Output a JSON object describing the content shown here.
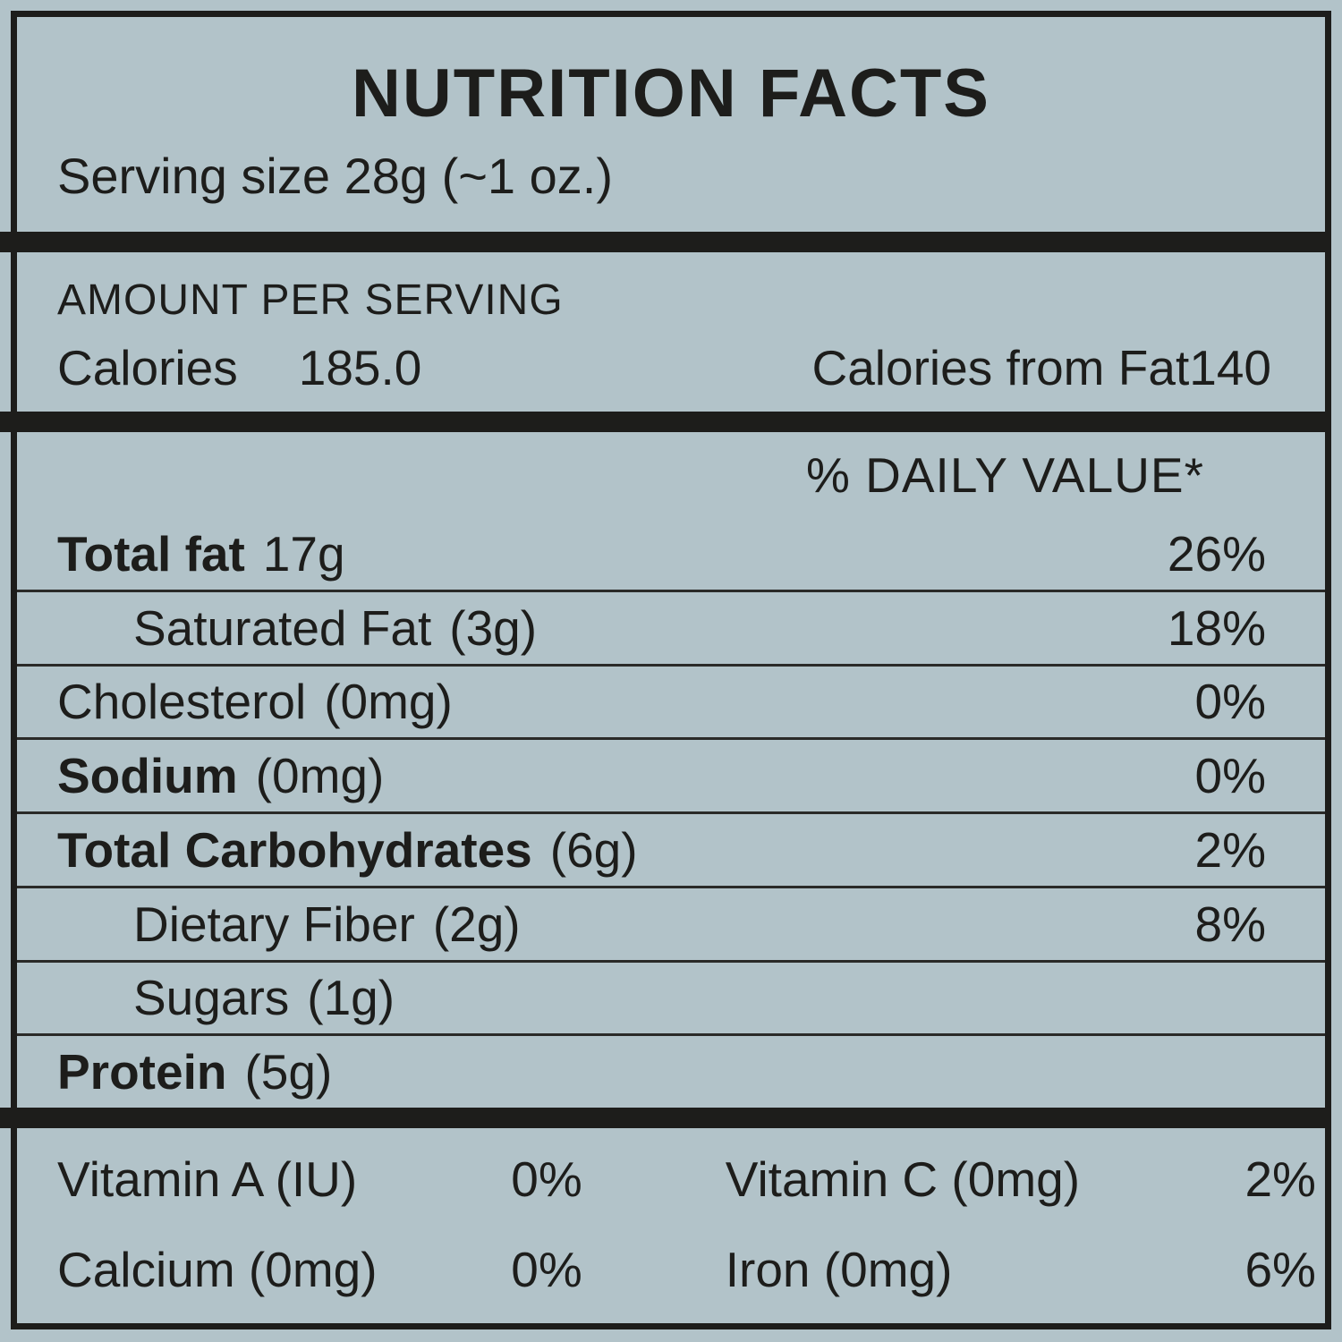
{
  "colors": {
    "background": "#b2c3c9",
    "ink": "#1d1d1b"
  },
  "header": {
    "title": "NUTRITION FACTS",
    "serving_size": "Serving size 28g (~1 oz.)"
  },
  "amount_per_serving": {
    "heading": "AMOUNT PER SERVING",
    "calories_label": "Calories",
    "calories_value": "185.0",
    "calories_from_fat": "Calories from Fat140"
  },
  "daily_value": {
    "heading": "% DAILY VALUE*",
    "rows": [
      {
        "name": "Total fat",
        "amount": "17g",
        "dv": "26%"
      },
      {
        "name": "Saturated Fat",
        "amount": "(3g)",
        "dv": "18%"
      },
      {
        "name": "Cholesterol",
        "amount": "(0mg)",
        "dv": "0%"
      },
      {
        "name": "Sodium",
        "amount": "(0mg)",
        "dv": "0%"
      },
      {
        "name": "Total Carbohydrates",
        "amount": "(6g)",
        "dv": "2%"
      },
      {
        "name": "Dietary Fiber",
        "amount": "(2g)",
        "dv": "8%"
      },
      {
        "name": "Sugars",
        "amount": "(1g)",
        "dv": ""
      },
      {
        "name": "Protein",
        "amount": "(5g)",
        "dv": ""
      }
    ]
  },
  "micronutrients": [
    {
      "name": "Vitamin A (IU)",
      "dv": "0%"
    },
    {
      "name": "Vitamin C (0mg)",
      "dv": "2%"
    },
    {
      "name": "Calcium (0mg)",
      "dv": "0%"
    },
    {
      "name": "Iron (0mg)",
      "dv": "6%"
    }
  ]
}
